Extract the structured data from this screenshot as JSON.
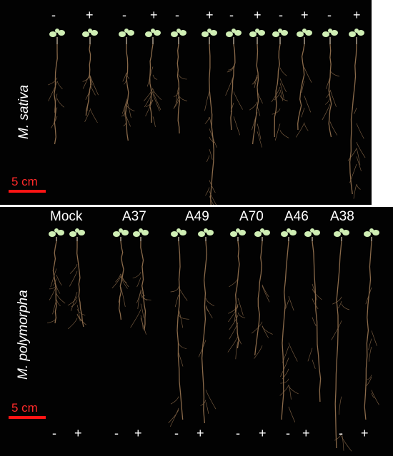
{
  "top_panel": {
    "species": "M. sativa",
    "signs": [
      "-",
      "+",
      "-",
      "+",
      "-",
      "+",
      "-",
      "+",
      "-",
      "+",
      "-",
      "+"
    ],
    "scale_label": "5 cm"
  },
  "bottom_panel": {
    "species": "M. polymorpha",
    "groups": [
      "Mock",
      "A37",
      "A49",
      "A70",
      "A46",
      "A38"
    ],
    "signs": [
      "-",
      "+",
      "-",
      "+",
      "-",
      "+",
      "-",
      "+",
      "-",
      "+",
      "-",
      "+"
    ],
    "scale_label": "5 cm"
  },
  "colors": {
    "background": "#020202",
    "text": "#ffffff",
    "scale_bar": "#ff1414",
    "root": "#8a6a4a",
    "leaf": "#cfeeb4"
  }
}
